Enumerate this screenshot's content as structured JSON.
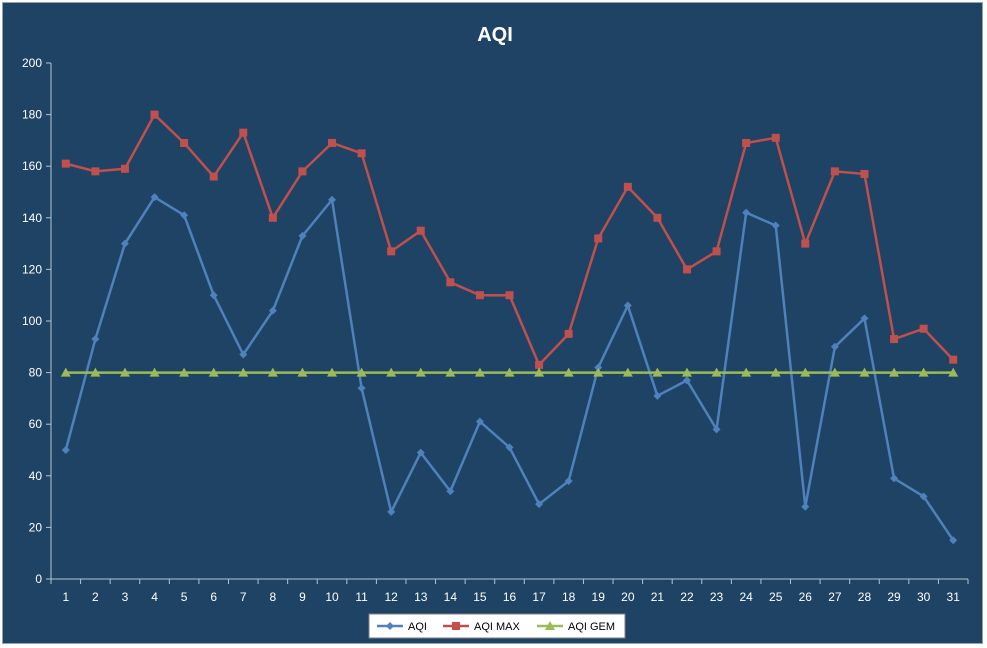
{
  "chart_data": {
    "type": "line",
    "title": "AQI",
    "xlabel": "",
    "ylabel": "",
    "x": [
      1,
      2,
      3,
      4,
      5,
      6,
      7,
      8,
      9,
      10,
      11,
      12,
      13,
      14,
      15,
      16,
      17,
      18,
      19,
      20,
      21,
      22,
      23,
      24,
      25,
      26,
      27,
      28,
      29,
      30,
      31
    ],
    "ylim": [
      0,
      200
    ],
    "yticks": [
      0,
      20,
      40,
      60,
      80,
      100,
      120,
      140,
      160,
      180,
      200
    ],
    "grid": false,
    "legend_position": "bottom",
    "series": [
      {
        "name": "AQI",
        "color": "#4f81bd",
        "marker": "diamond",
        "values": [
          50,
          93,
          130,
          148,
          141,
          110,
          87,
          104,
          133,
          147,
          74,
          26,
          49,
          34,
          61,
          51,
          29,
          38,
          82,
          106,
          71,
          77,
          58,
          142,
          137,
          28,
          90,
          101,
          39,
          32,
          15
        ]
      },
      {
        "name": "AQI MAX",
        "color": "#c0504d",
        "marker": "square",
        "values": [
          161,
          158,
          159,
          180,
          169,
          156,
          173,
          140,
          158,
          169,
          165,
          127,
          135,
          115,
          110,
          110,
          83,
          95,
          132,
          152,
          140,
          120,
          127,
          169,
          171,
          130,
          158,
          157,
          93,
          97,
          85
        ]
      },
      {
        "name": "AQI GEM",
        "color": "#9bbb59",
        "marker": "triangle",
        "values": [
          80,
          80,
          80,
          80,
          80,
          80,
          80,
          80,
          80,
          80,
          80,
          80,
          80,
          80,
          80,
          80,
          80,
          80,
          80,
          80,
          80,
          80,
          80,
          80,
          80,
          80,
          80,
          80,
          80,
          80,
          80
        ]
      }
    ]
  },
  "colors": {
    "background": "#1f4364",
    "axis": "#b8c4d0",
    "text": "#ffffff"
  }
}
